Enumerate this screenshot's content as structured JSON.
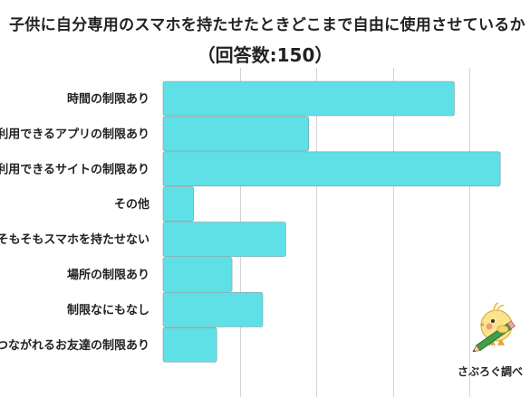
{
  "chart_data": {
    "type": "bar",
    "orientation": "horizontal",
    "title": "子供に自分専用のスマホを持たせたときどこまで自由に使用させているか",
    "subtitle": "（回答数:150）",
    "categories": [
      "時間の制限あり",
      "利用できるアプリの制限あり",
      "利用できるサイトの制限あり",
      "その他",
      "そもそもスマホを持たせない",
      "場所の制限あり",
      "制限なにもなし",
      "つながれるお友達の制限あり"
    ],
    "values": [
      38,
      19,
      44,
      4,
      16,
      9,
      13,
      7
    ],
    "xlim": [
      0,
      50
    ],
    "grid": true,
    "legend": "none",
    "bar_color": "#5ee0e6",
    "grid_color": "#d4d4d4"
  },
  "credit": {
    "text": "さぶろぐ調べ",
    "icon": "chick-mascot-with-pencil-icon"
  }
}
